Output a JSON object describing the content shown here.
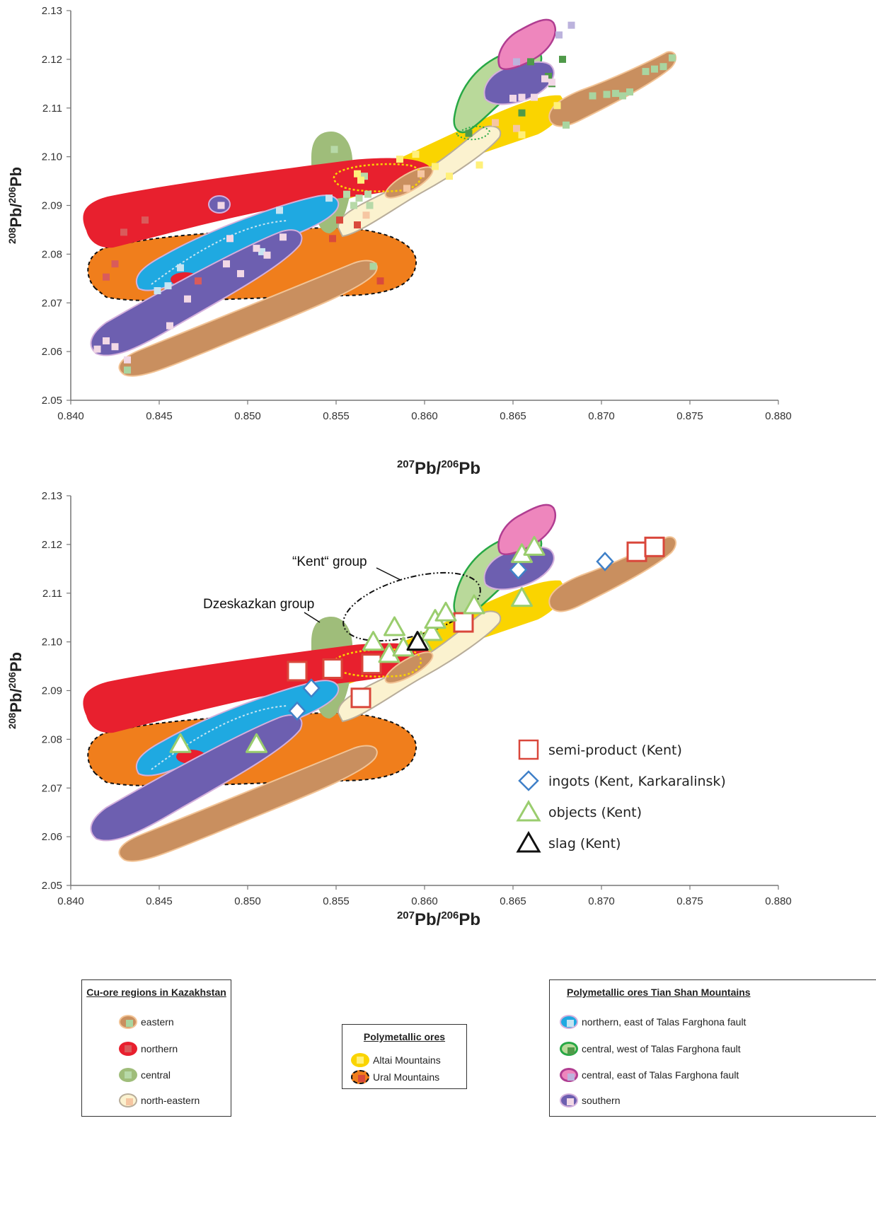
{
  "colors": {
    "eastern": "#c98f5f",
    "eastern_edge": "#f2c395",
    "eastern_marker": "#a9d5a0",
    "northern": "#e8202e",
    "northern_marker": "#d95b5b",
    "central": "#9fbd7a",
    "central_marker": "#b7d9a8",
    "north_eastern": "#fbf2cf",
    "north_eastern_edge": "#b8ad9a",
    "north_eastern_marker": "#f6c6a2",
    "altai": "#fad400",
    "altai_marker": "#fff07a",
    "ural": "#f07e1c",
    "ural_marker": "#d94a3c",
    "ts_northern": "#1fa9e1",
    "ts_northern_marker": "#c6e4f2",
    "ts_central_west": "#b9d99a",
    "ts_central_west_edge": "#27a845",
    "ts_central_west_marker": "#4f9a49",
    "ts_central_east": "#ee86bd",
    "ts_central_east_edge": "#b03d91",
    "ts_central_east_marker": "#bcb3dd",
    "ts_southern": "#6d5fb0",
    "ts_southern_edge": "#d4b0dc",
    "ts_southern_marker": "#f2d8e6",
    "semi_product": "#d9473b",
    "ingots": "#3f80c8",
    "objects": "#9acd6e",
    "slag": "#111111"
  },
  "chart_data": [
    {
      "type": "scatter",
      "title": "",
      "xlabel_main": "207",
      "xlabel_sup2": "206",
      "ylabel_main": "208",
      "ylabel_sup2": "206",
      "xlim": [
        0.84,
        0.88
      ],
      "ylim": [
        2.05,
        2.13
      ],
      "xticks": [
        "0.840",
        "0.845",
        "0.850",
        "0.855",
        "0.860",
        "0.865",
        "0.870",
        "0.875",
        "0.880"
      ],
      "yticks": [
        "2.05",
        "2.06",
        "2.07",
        "2.08",
        "2.09",
        "2.10",
        "2.11",
        "2.12",
        "2.13"
      ],
      "grid": false,
      "series": [
        {
          "key": "eastern",
          "points": [
            [
              0.8432,
              2.0562
            ],
            [
              0.8571,
              2.0775
            ],
            [
              0.868,
              2.1065
            ],
            [
              0.8695,
              2.1125
            ],
            [
              0.8703,
              2.1128
            ],
            [
              0.8708,
              2.113
            ],
            [
              0.8712,
              2.1125
            ],
            [
              0.8725,
              2.1175
            ],
            [
              0.873,
              2.118
            ],
            [
              0.8735,
              2.1185
            ],
            [
              0.874,
              2.1203
            ],
            [
              0.8716,
              2.1133
            ]
          ]
        },
        {
          "key": "northern",
          "points": [
            [
              0.842,
              2.0753
            ],
            [
              0.8425,
              2.078
            ],
            [
              0.843,
              2.0845
            ],
            [
              0.8442,
              2.087
            ],
            [
              0.8472,
              2.0745
            ]
          ]
        },
        {
          "key": "central",
          "points": [
            [
              0.8549,
              2.1015
            ],
            [
              0.8556,
              2.0923
            ],
            [
              0.856,
              2.09
            ],
            [
              0.8563,
              2.0915
            ],
            [
              0.8566,
              2.096
            ],
            [
              0.8569,
              2.09
            ],
            [
              0.8568,
              2.0923
            ]
          ]
        },
        {
          "key": "north_eastern",
          "points": [
            [
              0.8567,
              2.088
            ],
            [
              0.859,
              2.0935
            ],
            [
              0.8598,
              2.0965
            ],
            [
              0.864,
              2.107
            ],
            [
              0.8652,
              2.1058
            ]
          ]
        },
        {
          "key": "altai",
          "points": [
            [
              0.8562,
              2.0965
            ],
            [
              0.8564,
              2.0952
            ],
            [
              0.8586,
              2.0995
            ],
            [
              0.8595,
              2.1005
            ],
            [
              0.8606,
              2.098
            ],
            [
              0.8614,
              2.096
            ],
            [
              0.8631,
              2.0983
            ],
            [
              0.8655,
              2.1045
            ],
            [
              0.8675,
              2.1105
            ]
          ]
        },
        {
          "key": "ural",
          "points": [
            [
              0.8548,
              2.0832
            ],
            [
              0.8552,
              2.087
            ],
            [
              0.8562,
              2.086
            ],
            [
              0.8575,
              2.0745
            ]
          ]
        },
        {
          "key": "ts_northern",
          "points": [
            [
              0.8449,
              2.0725
            ],
            [
              0.8455,
              2.0735
            ],
            [
              0.8462,
              2.0772
            ],
            [
              0.8508,
              2.0805
            ],
            [
              0.8518,
              2.089
            ],
            [
              0.8546,
              2.0915
            ]
          ]
        },
        {
          "key": "ts_central_west",
          "points": [
            [
              0.8625,
              2.1048
            ],
            [
              0.8655,
              2.109
            ],
            [
              0.866,
              2.1195
            ],
            [
              0.867,
              2.1165
            ],
            [
              0.8678,
              2.12
            ],
            [
              0.8672,
              2.115
            ]
          ]
        },
        {
          "key": "ts_central_east",
          "points": [
            [
              0.8652,
              2.1195
            ],
            [
              0.8676,
              2.125
            ],
            [
              0.8683,
              2.127
            ]
          ]
        },
        {
          "key": "ts_southern",
          "points": [
            [
              0.8415,
              2.0605
            ],
            [
              0.842,
              2.0622
            ],
            [
              0.8425,
              2.061
            ],
            [
              0.8432,
              2.0583
            ],
            [
              0.8456,
              2.0653
            ],
            [
              0.8466,
              2.0708
            ],
            [
              0.8488,
              2.078
            ],
            [
              0.8496,
              2.076
            ],
            [
              0.8505,
              2.0812
            ],
            [
              0.8511,
              2.0798
            ],
            [
              0.852,
              2.0835
            ],
            [
              0.8485,
              2.09
            ],
            [
              0.849,
              2.0832
            ],
            [
              0.865,
              2.112
            ],
            [
              0.8655,
              2.1122
            ],
            [
              0.8662,
              2.1122
            ],
            [
              0.8668,
              2.116
            ],
            [
              0.8672,
              2.1153
            ]
          ]
        }
      ]
    },
    {
      "type": "scatter",
      "title": "",
      "xlabel_main": "207",
      "xlabel_sup2": "206",
      "ylabel_main": "208",
      "ylabel_sup2": "206",
      "xlim": [
        0.84,
        0.88
      ],
      "ylim": [
        2.05,
        2.13
      ],
      "xticks": [
        "0.840",
        "0.845",
        "0.850",
        "0.855",
        "0.860",
        "0.865",
        "0.870",
        "0.875",
        "0.880"
      ],
      "yticks": [
        "2.05",
        "2.06",
        "2.07",
        "2.08",
        "2.09",
        "2.10",
        "2.11",
        "2.12",
        "2.13"
      ],
      "grid": false,
      "legend_position": "lower-right",
      "annotations": [
        "“Kent“ group",
        "Dzeskazkan group"
      ],
      "series": [
        {
          "key": "semi_product",
          "name": "semi-product (Kent)",
          "marker": "square",
          "points": [
            [
              0.8528,
              2.094
            ],
            [
              0.8548,
              2.0945
            ],
            [
              0.857,
              2.0955
            ],
            [
              0.8564,
              2.0885
            ],
            [
              0.8622,
              2.104
            ],
            [
              0.872,
              2.1185
            ],
            [
              0.873,
              2.1195
            ]
          ]
        },
        {
          "key": "ingots",
          "name": "ingots (Kent, Karkaralinsk)",
          "marker": "diamond",
          "points": [
            [
              0.8528,
              2.0858
            ],
            [
              0.8536,
              2.0905
            ],
            [
              0.8653,
              2.1148
            ],
            [
              0.8702,
              2.1165
            ]
          ]
        },
        {
          "key": "objects",
          "name": "objects (Kent)",
          "marker": "triangle",
          "points": [
            [
              0.8462,
              2.079
            ],
            [
              0.8505,
              2.079
            ],
            [
              0.8571,
              2.1
            ],
            [
              0.858,
              2.0975
            ],
            [
              0.8583,
              2.103
            ],
            [
              0.8588,
              2.0988
            ],
            [
              0.8598,
              2.1
            ],
            [
              0.8604,
              2.102
            ],
            [
              0.8606,
              2.1045
            ],
            [
              0.8612,
              2.106
            ],
            [
              0.8628,
              2.1075
            ],
            [
              0.8655,
              2.109
            ],
            [
              0.8655,
              2.118
            ],
            [
              0.8662,
              2.1195
            ]
          ]
        },
        {
          "key": "slag",
          "name": "slag (Kent)",
          "marker": "triangle",
          "points": [
            [
              0.8596,
              2.1
            ]
          ]
        }
      ]
    }
  ],
  "legend_cu": {
    "title": "Cu-ore regions in Kazakhstan",
    "items": [
      "eastern",
      "northern",
      "central",
      "north-eastern"
    ]
  },
  "legend_poly": {
    "title": "Polymetallic ores",
    "items": [
      "Altai Mountains",
      "Ural Mountains"
    ]
  },
  "legend_ts": {
    "title": "Polymetallic ores Tian Shan Mountains",
    "items": [
      "northern, east of  Talas Farghona fault",
      "central, west of Talas Farghona fault",
      "central, east of Talas Farghona fault",
      "southern"
    ]
  }
}
